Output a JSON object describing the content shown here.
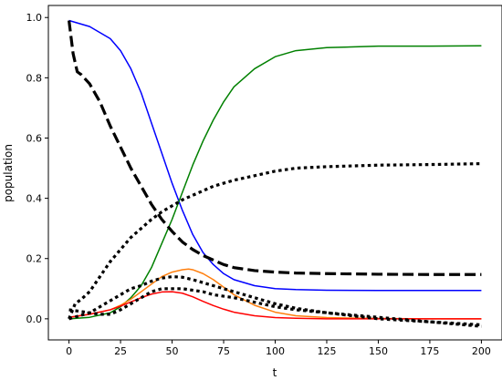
{
  "chart_data": {
    "type": "line",
    "title": "",
    "xlabel": "t",
    "ylabel": "population",
    "xlim": [
      -10,
      210
    ],
    "ylim": [
      -0.07,
      1.04
    ],
    "xticks": [
      0,
      25,
      50,
      75,
      100,
      125,
      150,
      175,
      200
    ],
    "yticks": [
      0.0,
      0.2,
      0.4,
      0.6,
      0.8,
      1.0
    ],
    "grid": false,
    "legend": "none",
    "series": [
      {
        "color": "#0000ff",
        "style": "solid",
        "x": [
          0,
          10,
          20,
          25,
          30,
          35,
          40,
          45,
          50,
          55,
          60,
          65,
          70,
          75,
          80,
          90,
          100,
          110,
          125,
          150,
          175,
          200
        ],
        "y": [
          0.99,
          0.97,
          0.93,
          0.89,
          0.83,
          0.75,
          0.65,
          0.55,
          0.45,
          0.36,
          0.28,
          0.22,
          0.18,
          0.15,
          0.13,
          0.11,
          0.1,
          0.097,
          0.095,
          0.094,
          0.094,
          0.094
        ]
      },
      {
        "color": "#008000",
        "style": "solid",
        "x": [
          0,
          10,
          20,
          25,
          30,
          35,
          40,
          45,
          50,
          55,
          60,
          65,
          70,
          75,
          80,
          90,
          100,
          110,
          125,
          150,
          175,
          200
        ],
        "y": [
          0.0,
          0.005,
          0.02,
          0.04,
          0.07,
          0.11,
          0.17,
          0.25,
          0.33,
          0.42,
          0.51,
          0.59,
          0.66,
          0.72,
          0.77,
          0.83,
          0.87,
          0.89,
          0.9,
          0.905,
          0.905,
          0.906
        ]
      },
      {
        "color": "#ff7f0e",
        "style": "solid",
        "x": [
          0,
          10,
          20,
          25,
          30,
          35,
          40,
          45,
          50,
          55,
          58,
          60,
          65,
          70,
          75,
          80,
          90,
          100,
          110,
          125,
          150,
          175,
          200
        ],
        "y": [
          0.005,
          0.015,
          0.03,
          0.045,
          0.065,
          0.09,
          0.115,
          0.14,
          0.155,
          0.163,
          0.165,
          0.163,
          0.15,
          0.13,
          0.105,
          0.08,
          0.045,
          0.022,
          0.01,
          0.004,
          0.001,
          0.0,
          0.0
        ]
      },
      {
        "color": "#ff0000",
        "style": "solid",
        "x": [
          0,
          10,
          20,
          25,
          30,
          35,
          40,
          45,
          50,
          55,
          60,
          65,
          70,
          75,
          80,
          90,
          100,
          110,
          125,
          150,
          175,
          200
        ],
        "y": [
          0.005,
          0.015,
          0.03,
          0.042,
          0.056,
          0.07,
          0.082,
          0.089,
          0.09,
          0.085,
          0.073,
          0.058,
          0.044,
          0.032,
          0.022,
          0.01,
          0.004,
          0.002,
          0.0,
          0.0,
          0.0,
          0.0
        ]
      },
      {
        "color": "#000000",
        "style": "dashed",
        "x": [
          0,
          2,
          4,
          6,
          10,
          15,
          20,
          25,
          30,
          35,
          40,
          45,
          50,
          55,
          60,
          65,
          70,
          75,
          80,
          90,
          100,
          110,
          125,
          150,
          175,
          200
        ],
        "y": [
          0.99,
          0.88,
          0.82,
          0.81,
          0.78,
          0.72,
          0.64,
          0.57,
          0.5,
          0.44,
          0.38,
          0.33,
          0.29,
          0.255,
          0.23,
          0.21,
          0.195,
          0.18,
          0.17,
          0.16,
          0.155,
          0.152,
          0.15,
          0.148,
          0.147,
          0.147
        ]
      },
      {
        "color": "#000000",
        "style": "dotted",
        "x": [
          0,
          3,
          6,
          10,
          15,
          20,
          25,
          30,
          35,
          40,
          45,
          50,
          55,
          60,
          65,
          70,
          75,
          80,
          90,
          100,
          110,
          125,
          150,
          175,
          200
        ],
        "y": [
          0.0,
          0.05,
          0.065,
          0.09,
          0.14,
          0.19,
          0.23,
          0.27,
          0.3,
          0.33,
          0.355,
          0.375,
          0.395,
          0.41,
          0.425,
          0.44,
          0.45,
          0.46,
          0.475,
          0.49,
          0.5,
          0.505,
          0.51,
          0.512,
          0.515
        ]
      },
      {
        "color": "#000000",
        "style": "dotted",
        "x": [
          0,
          5,
          10,
          15,
          20,
          25,
          30,
          35,
          40,
          45,
          50,
          55,
          60,
          65,
          70,
          75,
          80,
          90,
          100,
          110,
          125,
          150,
          175,
          200
        ],
        "y": [
          0.0,
          0.01,
          0.02,
          0.04,
          0.06,
          0.08,
          0.1,
          0.11,
          0.125,
          0.135,
          0.14,
          0.138,
          0.13,
          0.12,
          0.11,
          0.1,
          0.09,
          0.07,
          0.05,
          0.035,
          0.02,
          0.0,
          -0.01,
          -0.02
        ]
      },
      {
        "color": "#000000",
        "style": "dotted",
        "x": [
          0,
          5,
          10,
          15,
          20,
          25,
          30,
          35,
          40,
          45,
          50,
          55,
          60,
          65,
          70,
          75,
          80,
          90,
          100,
          110,
          125,
          150,
          175,
          200
        ],
        "y": [
          0.03,
          0.025,
          0.02,
          0.015,
          0.015,
          0.03,
          0.05,
          0.07,
          0.09,
          0.1,
          0.1,
          0.1,
          0.095,
          0.09,
          0.08,
          0.075,
          0.07,
          0.055,
          0.04,
          0.03,
          0.02,
          0.005,
          -0.01,
          -0.025
        ]
      }
    ]
  }
}
